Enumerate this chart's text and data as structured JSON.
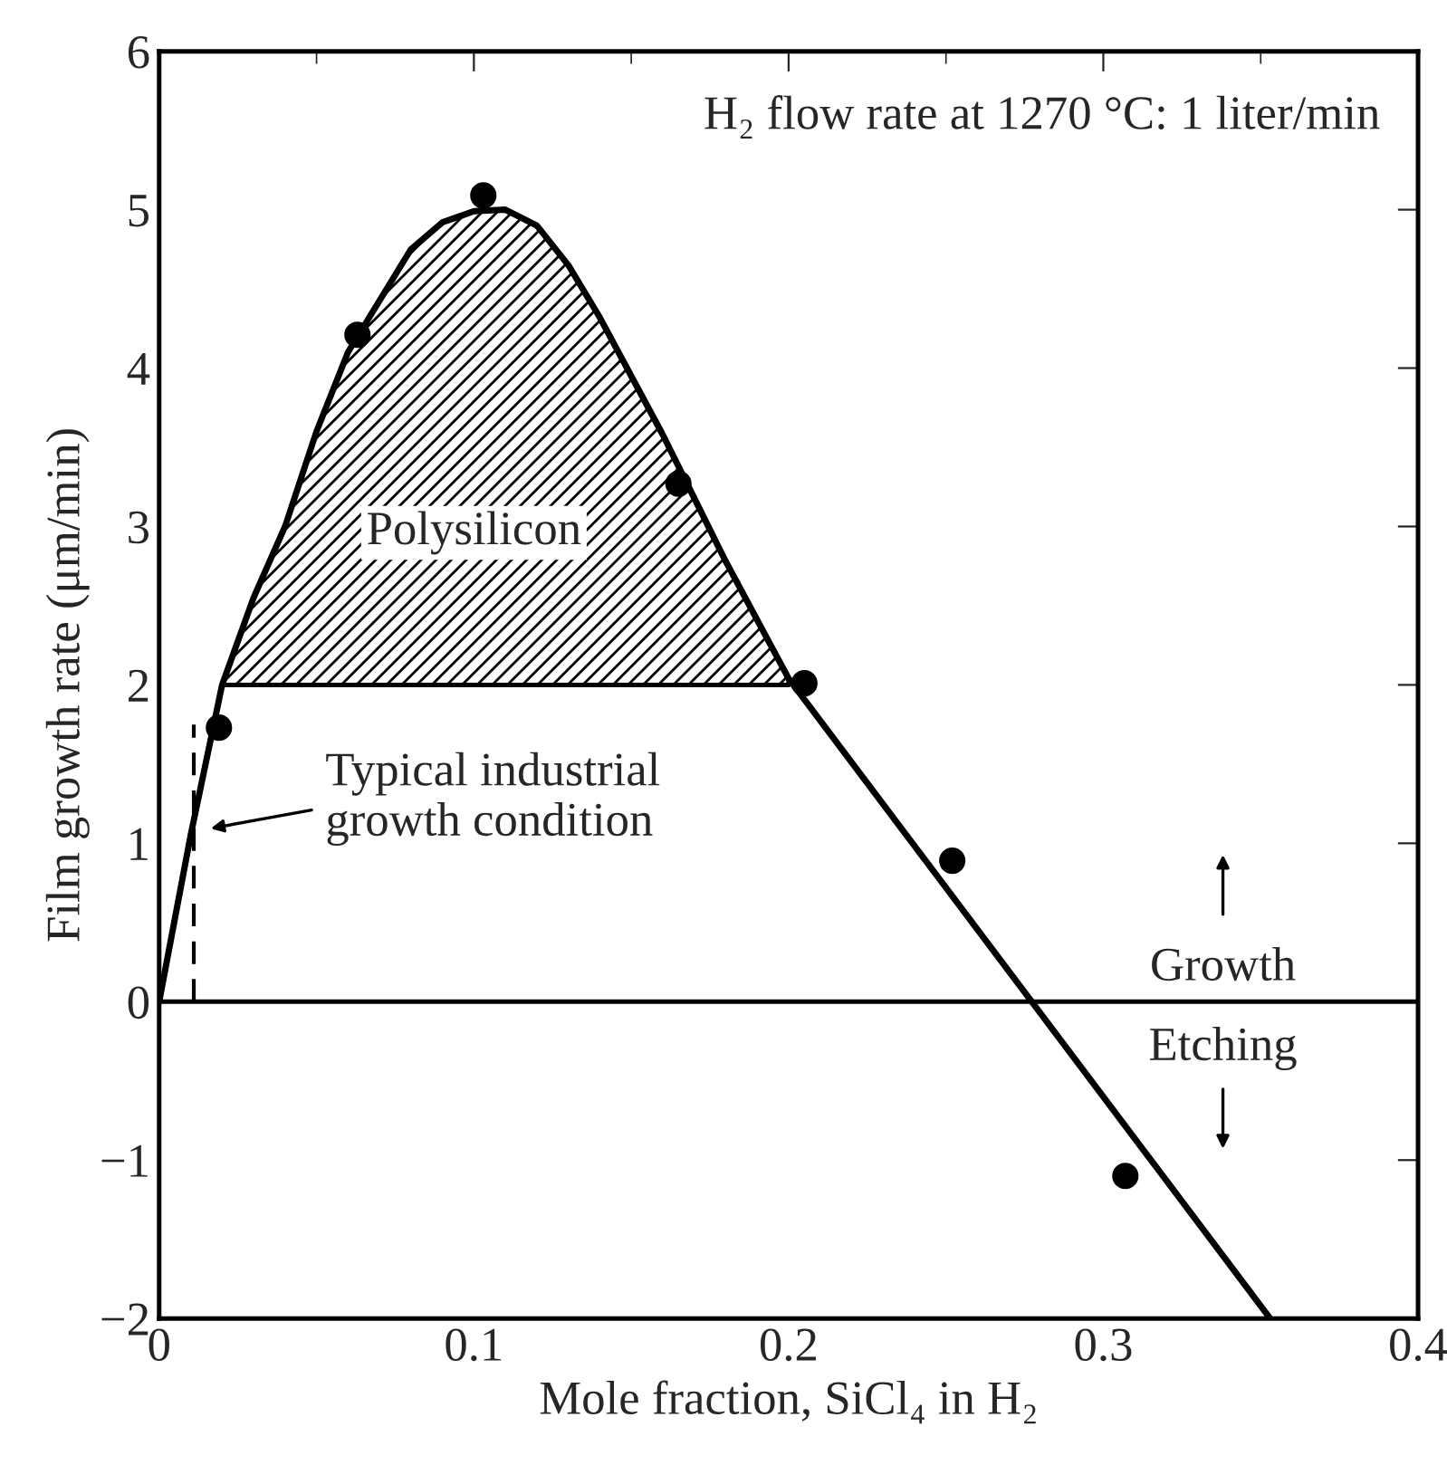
{
  "chart_data": {
    "type": "scatter",
    "xlabel": "Mole fraction, SiCl₄ in H₂",
    "ylabel": "Film growth rate (μm/min)",
    "xlim": [
      0,
      0.4
    ],
    "ylim": [
      -2,
      6
    ],
    "xticks": [
      0,
      0.1,
      0.2,
      0.3,
      0.4
    ],
    "yticks": [
      {
        "value": -2,
        "label": "−2"
      },
      {
        "value": -1,
        "label": "−1"
      },
      0,
      1,
      2,
      3,
      4,
      5,
      6
    ],
    "grid": false,
    "series": [
      {
        "type": "line",
        "color": "#000000",
        "line_style": "solid",
        "x": [
          0,
          0.01,
          0.02,
          0.03,
          0.04,
          0.05,
          0.06,
          0.08,
          0.09,
          0.1,
          0.11,
          0.12,
          0.13,
          0.14,
          0.16,
          0.18,
          0.2,
          0.353
        ],
        "values": [
          0,
          1.05,
          2.0,
          2.55,
          3.0,
          3.6,
          4.1,
          4.75,
          4.92,
          4.99,
          5.0,
          4.9,
          4.65,
          4.32,
          3.58,
          2.78,
          2.04,
          -2.0
        ],
        "lower": [
          null,
          null,
          2.0,
          2.0,
          2.0,
          2.0,
          2.0,
          2.0,
          2.0,
          2.0,
          2.0,
          2.0,
          2.0,
          2.0,
          2.0,
          2.0,
          2.0,
          null
        ],
        "upper": [
          null,
          null,
          2.0,
          2.55,
          3.0,
          3.6,
          4.1,
          4.75,
          4.92,
          4.99,
          5.0,
          4.9,
          4.65,
          4.32,
          3.58,
          2.78,
          2.04,
          null
        ]
      },
      {
        "type": "line",
        "color": "#000000",
        "line_style": "dashed",
        "x": [
          0.011,
          0.011
        ],
        "values": [
          0,
          1.75
        ]
      },
      {
        "color": "#000000",
        "marker": "circle",
        "x": [
          0.019,
          0.063,
          0.103,
          0.165,
          0.205,
          0.252,
          0.307
        ],
        "values": [
          1.73,
          4.21,
          5.09,
          3.27,
          2.01,
          0.89,
          -1.1
        ]
      }
    ],
    "ref_lines": [
      {
        "axis": "y",
        "value": 0,
        "color": "#000000",
        "line_style": "solid"
      }
    ],
    "annotations": [
      "H₂ flow rate at 1270 °C: 1 liter/min",
      "Polysilicon",
      "Typical industrial\ngrowth condition",
      "Growth",
      "Etching"
    ]
  }
}
